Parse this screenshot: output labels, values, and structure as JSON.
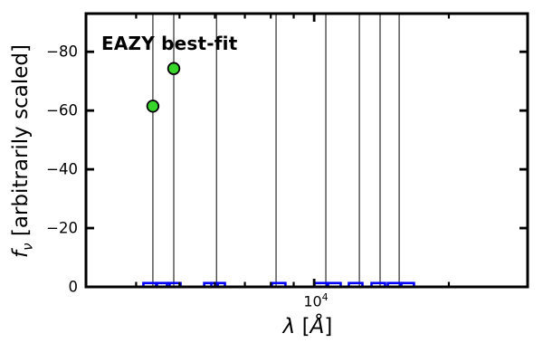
{
  "figure": {
    "annotation": "EAZY best-fit",
    "annotation_color": "#ff0000",
    "ylabel_f": "f",
    "ylabel_sub": "ν",
    "ylabel_rest": " [arbitrarily scaled]",
    "xlabel_var": "λ",
    "xlabel_open": " [",
    "xlabel_unit": "Å",
    "xlabel_close": "]",
    "x_tick_base": "10",
    "x_tick_exp": "4"
  },
  "chart_data": {
    "type": "scatter",
    "annotation": "EAZY best-fit",
    "xlabel": "λ [Å]",
    "ylabel": "f_ν [arbitrarily scaled]",
    "x_scale": "log",
    "xlim": [
      3090,
      30000
    ],
    "ylim": [
      0,
      -93
    ],
    "grid": false,
    "legend": "none",
    "y_major_ticks": [
      0,
      -20,
      -40,
      -60,
      -80
    ],
    "y_tick_labels": [
      "0",
      "−20",
      "−40",
      "−60",
      "−80"
    ],
    "x_minor_ticks": [
      4000,
      5000,
      6000,
      7000,
      8000,
      9000,
      20000
    ],
    "x_major_ticks": [
      10000
    ],
    "x_major_tick_labels": [
      "10⁴"
    ],
    "series": [
      {
        "name": "observed photometry",
        "marker": "circle",
        "fill": "#38d62b",
        "edge": "#000000",
        "points": [
          {
            "lambda": 4360,
            "flux": -61.5
          },
          {
            "lambda": 4855,
            "flux": -74.3
          }
        ]
      },
      {
        "name": "template photometry",
        "marker": "open-square",
        "edge": "#0000ff",
        "flux": 1,
        "lambdas": [
          4300,
          4590,
          4855,
          5880,
          6100,
          8330,
          10370,
          11070,
          12380,
          13910,
          15130,
          16140
        ]
      },
      {
        "name": "error bars",
        "marker": "vline",
        "color": "#2b2b2b",
        "lambdas": [
          4360,
          4855,
          6050,
          8220,
          10620,
          12620,
          14040,
          15490
        ]
      }
    ]
  }
}
